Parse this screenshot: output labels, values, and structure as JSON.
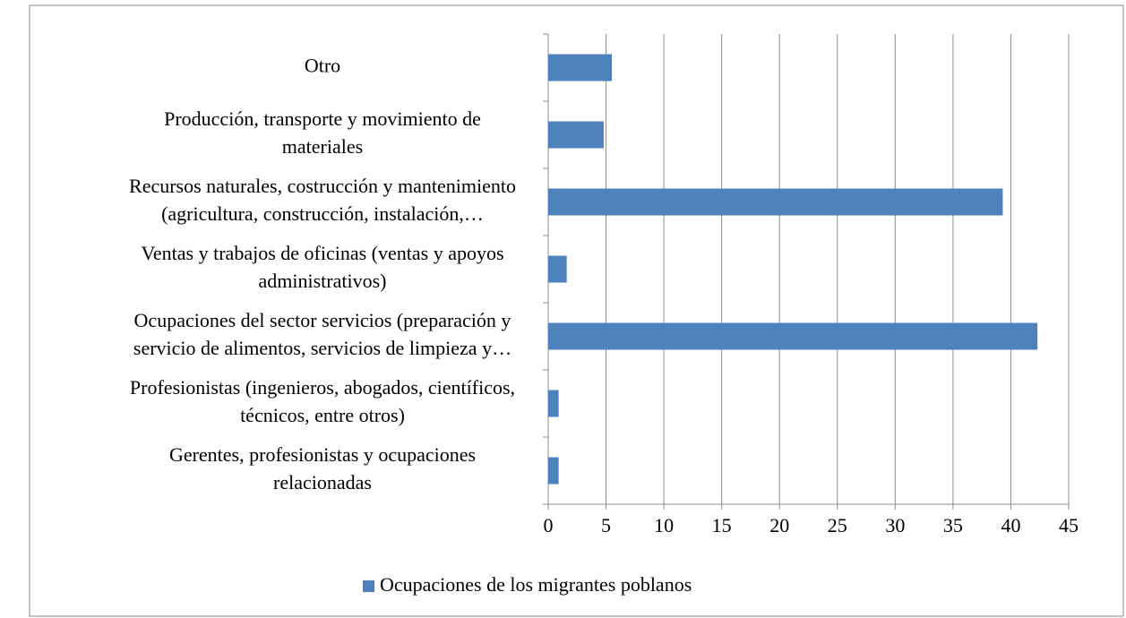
{
  "chart_data": {
    "type": "bar",
    "orientation": "horizontal",
    "categories": [
      [
        "Otro"
      ],
      [
        "Producción, transporte y movimiento de",
        "materiales"
      ],
      [
        "Recursos naturales, costrucción  y mantenimiento",
        "(agricultura, construcción, instalación,…"
      ],
      [
        "Ventas y trabajos de oficinas (ventas y apoyos",
        "administrativos)"
      ],
      [
        "Ocupaciones del sector servicios (preparación y",
        "servicio de alimentos, servicios de limpieza y…"
      ],
      [
        "Profesionistas (ingenieros, abogados, científicos,",
        "técnicos, entre otros)"
      ],
      [
        "Gerentes, profesionistas y ocupaciones",
        "relacionadas"
      ]
    ],
    "series": [
      {
        "name": "Ocupaciones de los migrantes poblanos",
        "color": "#4f81bd",
        "values": [
          5.5,
          4.8,
          39.3,
          1.6,
          42.3,
          0.9,
          0.9
        ]
      }
    ],
    "xlim": [
      0,
      45
    ],
    "xticks": [
      0,
      5,
      10,
      15,
      20,
      25,
      30,
      35,
      40,
      45
    ],
    "grid": true,
    "legend": "bottom"
  }
}
